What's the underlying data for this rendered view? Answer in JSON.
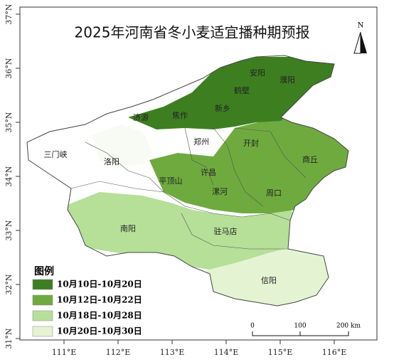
{
  "title": "2025年河南省冬小麦适宜播种期预报",
  "north": "N",
  "legend": {
    "title": "图例",
    "items": [
      {
        "label": "10月10日-10月20日",
        "color": "#3d7f20"
      },
      {
        "label": "10月12日-10月22日",
        "color": "#6faa3f"
      },
      {
        "label": "10月18日-10月28日",
        "color": "#b6df98"
      },
      {
        "label": "10月20日-10月30日",
        "color": "#e4f4d3"
      }
    ]
  },
  "cities": [
    "安阳",
    "濮阳",
    "鹤壁",
    "新乡",
    "济源",
    "焦作",
    "开封",
    "郑州",
    "商丘",
    "三门峡",
    "洛阳",
    "许昌",
    "平顶山",
    "漯河",
    "周口",
    "南阳",
    "驻马店",
    "信阳"
  ],
  "longitude_labels": [
    "111°E",
    "112°E",
    "113°E",
    "114°E",
    "115°E",
    "116°E"
  ],
  "latitude_labels": [
    "37°N",
    "36°N",
    "35°N",
    "34°N",
    "33°N",
    "32°N",
    "31°N"
  ],
  "scale_bar": [
    "0",
    "100",
    "200 km"
  ]
}
